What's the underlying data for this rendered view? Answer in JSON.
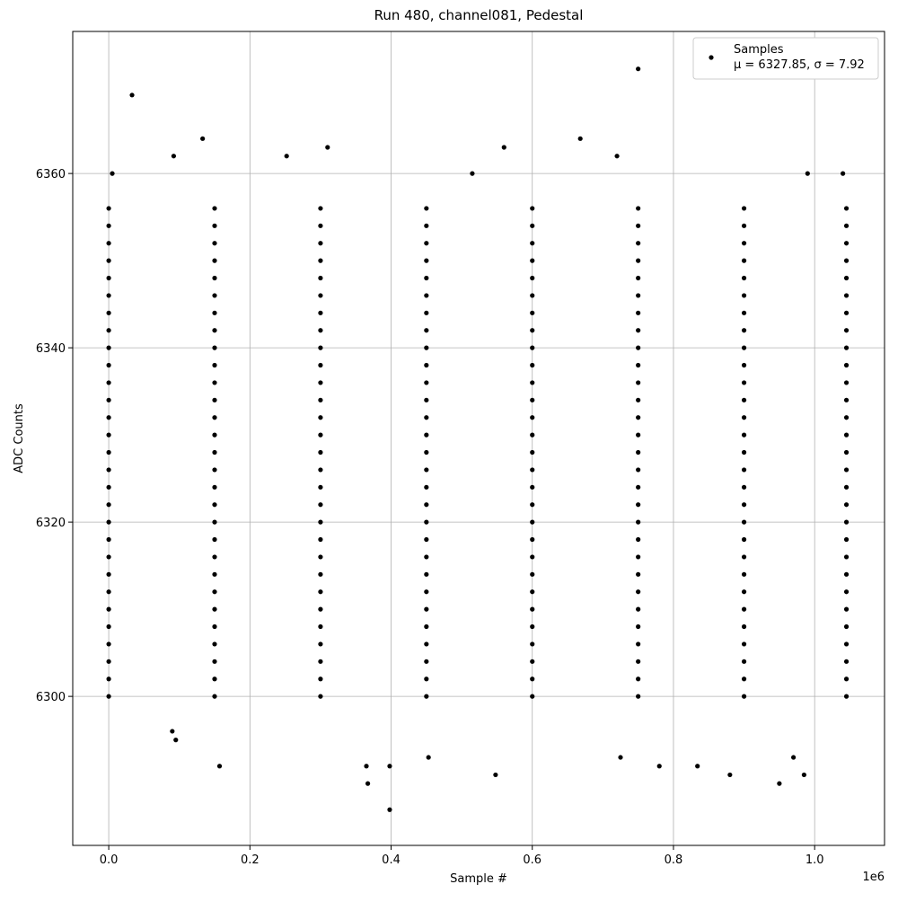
{
  "chart_data": {
    "type": "scatter",
    "title": "Run 480, channel081, Pedestal",
    "x_label": "Sample #",
    "y_label": "ADC Counts",
    "x_offset_label": "1e6",
    "xlim": [
      -0.051,
      1.099
    ],
    "ylim": [
      6282.9,
      6376.3
    ],
    "xticks": [
      {
        "value": 0,
        "label": "0.0"
      },
      {
        "value": 0.2,
        "label": "0.2"
      },
      {
        "value": 0.4,
        "label": "0.4"
      },
      {
        "value": 0.6,
        "label": "0.6"
      },
      {
        "value": 0.8,
        "label": "0.8"
      },
      {
        "value": 1,
        "label": "1.0"
      }
    ],
    "yticks": [
      6300,
      6320,
      6340,
      6360
    ],
    "grid": true,
    "legend": "upper right",
    "series": [
      {
        "name": "Samples",
        "stats_label": "μ = 6327.85, σ = 7.92",
        "color": "#000000",
        "x": [
          0.0,
          0.15,
          0.3,
          0.45,
          0.6,
          0.75,
          0.9,
          1.045,
          0.0,
          0.15,
          0.3,
          0.45,
          0.6,
          0.75,
          0.9,
          1.045,
          0.0,
          0.15,
          0.3,
          0.45,
          0.6,
          0.75,
          0.9,
          1.045,
          0.0,
          0.15,
          0.3,
          0.45,
          0.6,
          0.75,
          0.9,
          1.045,
          0.0,
          0.15,
          0.3,
          0.45,
          0.6,
          0.75,
          0.9,
          1.045,
          0.0,
          0.15,
          0.3,
          0.45,
          0.6,
          0.75,
          0.9,
          1.045,
          0.0,
          0.15,
          0.3,
          0.45,
          0.6,
          0.75,
          0.9,
          1.045,
          0.0,
          0.15,
          0.3,
          0.45,
          0.6,
          0.75,
          0.9,
          1.045,
          0.0,
          0.15,
          0.3,
          0.45,
          0.6,
          0.75,
          0.9,
          1.045,
          0.0,
          0.15,
          0.3,
          0.45,
          0.6,
          0.75,
          0.9,
          1.045,
          0.0,
          0.15,
          0.3,
          0.45,
          0.6,
          0.75,
          0.9,
          1.045,
          0.0,
          0.15,
          0.3,
          0.45,
          0.6,
          0.75,
          0.9,
          1.045,
          0.0,
          0.15,
          0.3,
          0.45,
          0.6,
          0.75,
          0.9,
          1.045,
          0.0,
          0.15,
          0.3,
          0.45,
          0.6,
          0.75,
          0.9,
          1.045,
          0.0,
          0.15,
          0.3,
          0.45,
          0.6,
          0.75,
          0.9,
          1.045,
          0.0,
          0.15,
          0.3,
          0.45,
          0.6,
          0.75,
          0.9,
          1.045,
          0.0,
          0.15,
          0.3,
          0.45,
          0.6,
          0.75,
          0.9,
          1.045,
          0.0,
          0.15,
          0.3,
          0.45,
          0.6,
          0.75,
          0.9,
          1.045,
          0.0,
          0.15,
          0.3,
          0.45,
          0.6,
          0.75,
          0.9,
          1.045,
          0.0,
          0.15,
          0.3,
          0.45,
          0.6,
          0.75,
          0.9,
          1.045,
          0.0,
          0.15,
          0.3,
          0.45,
          0.6,
          0.75,
          0.9,
          1.045,
          0.0,
          0.15,
          0.3,
          0.45,
          0.6,
          0.75,
          0.9,
          1.045,
          0.0,
          0.15,
          0.3,
          0.45,
          0.6,
          0.75,
          0.9,
          1.045,
          0.0,
          0.15,
          0.3,
          0.45,
          0.6,
          0.75,
          0.9,
          1.045,
          0.0,
          0.15,
          0.3,
          0.45,
          0.6,
          0.75,
          0.9,
          1.045,
          0.0,
          0.15,
          0.3,
          0.45,
          0.6,
          0.75,
          0.9,
          1.045,
          0.0,
          0.15,
          0.3,
          0.45,
          0.6,
          0.75,
          0.9,
          1.045,
          0.0,
          0.15,
          0.3,
          0.45,
          0.6,
          0.75,
          0.9,
          1.045,
          0.0,
          0.15,
          0.3,
          0.45,
          0.6,
          0.75,
          0.9,
          1.045,
          0.033,
          0.133,
          0.31,
          0.75,
          0.668,
          0.56,
          0.092,
          0.252,
          0.72,
          0.157,
          0.365,
          0.367,
          0.398,
          0.398,
          0.453,
          0.548,
          0.88,
          0.95,
          0.97,
          0.985,
          0.834,
          0.78,
          0.725,
          0.09,
          0.095,
          0.005,
          0.99,
          1.04,
          0.515
        ],
        "y": [
          6300,
          6300,
          6300,
          6300,
          6300,
          6300,
          6300,
          6300,
          6302,
          6302,
          6302,
          6302,
          6302,
          6302,
          6302,
          6302,
          6304,
          6304,
          6304,
          6304,
          6304,
          6304,
          6304,
          6304,
          6306,
          6306,
          6306,
          6306,
          6306,
          6306,
          6306,
          6306,
          6308,
          6308,
          6308,
          6308,
          6308,
          6308,
          6308,
          6308,
          6310,
          6310,
          6310,
          6310,
          6310,
          6310,
          6310,
          6310,
          6312,
          6312,
          6312,
          6312,
          6312,
          6312,
          6312,
          6312,
          6314,
          6314,
          6314,
          6314,
          6314,
          6314,
          6314,
          6314,
          6316,
          6316,
          6316,
          6316,
          6316,
          6316,
          6316,
          6316,
          6318,
          6318,
          6318,
          6318,
          6318,
          6318,
          6318,
          6318,
          6320,
          6320,
          6320,
          6320,
          6320,
          6320,
          6320,
          6320,
          6322,
          6322,
          6322,
          6322,
          6322,
          6322,
          6322,
          6322,
          6324,
          6324,
          6324,
          6324,
          6324,
          6324,
          6324,
          6324,
          6326,
          6326,
          6326,
          6326,
          6326,
          6326,
          6326,
          6326,
          6328,
          6328,
          6328,
          6328,
          6328,
          6328,
          6328,
          6328,
          6330,
          6330,
          6330,
          6330,
          6330,
          6330,
          6330,
          6330,
          6332,
          6332,
          6332,
          6332,
          6332,
          6332,
          6332,
          6332,
          6334,
          6334,
          6334,
          6334,
          6334,
          6334,
          6334,
          6334,
          6336,
          6336,
          6336,
          6336,
          6336,
          6336,
          6336,
          6336,
          6338,
          6338,
          6338,
          6338,
          6338,
          6338,
          6338,
          6338,
          6340,
          6340,
          6340,
          6340,
          6340,
          6340,
          6340,
          6340,
          6342,
          6342,
          6342,
          6342,
          6342,
          6342,
          6342,
          6342,
          6344,
          6344,
          6344,
          6344,
          6344,
          6344,
          6344,
          6344,
          6346,
          6346,
          6346,
          6346,
          6346,
          6346,
          6346,
          6346,
          6348,
          6348,
          6348,
          6348,
          6348,
          6348,
          6348,
          6348,
          6350,
          6350,
          6350,
          6350,
          6350,
          6350,
          6350,
          6350,
          6352,
          6352,
          6352,
          6352,
          6352,
          6352,
          6352,
          6352,
          6354,
          6354,
          6354,
          6354,
          6354,
          6354,
          6354,
          6354,
          6356,
          6356,
          6356,
          6356,
          6356,
          6356,
          6356,
          6356,
          6369,
          6364,
          6363,
          6372,
          6364,
          6363,
          6362,
          6362,
          6362,
          6292,
          6292,
          6290,
          6287,
          6292,
          6293,
          6291,
          6291,
          6290,
          6293,
          6291,
          6292,
          6292,
          6293,
          6296,
          6295,
          6360,
          6360,
          6360,
          6360
        ]
      }
    ]
  }
}
